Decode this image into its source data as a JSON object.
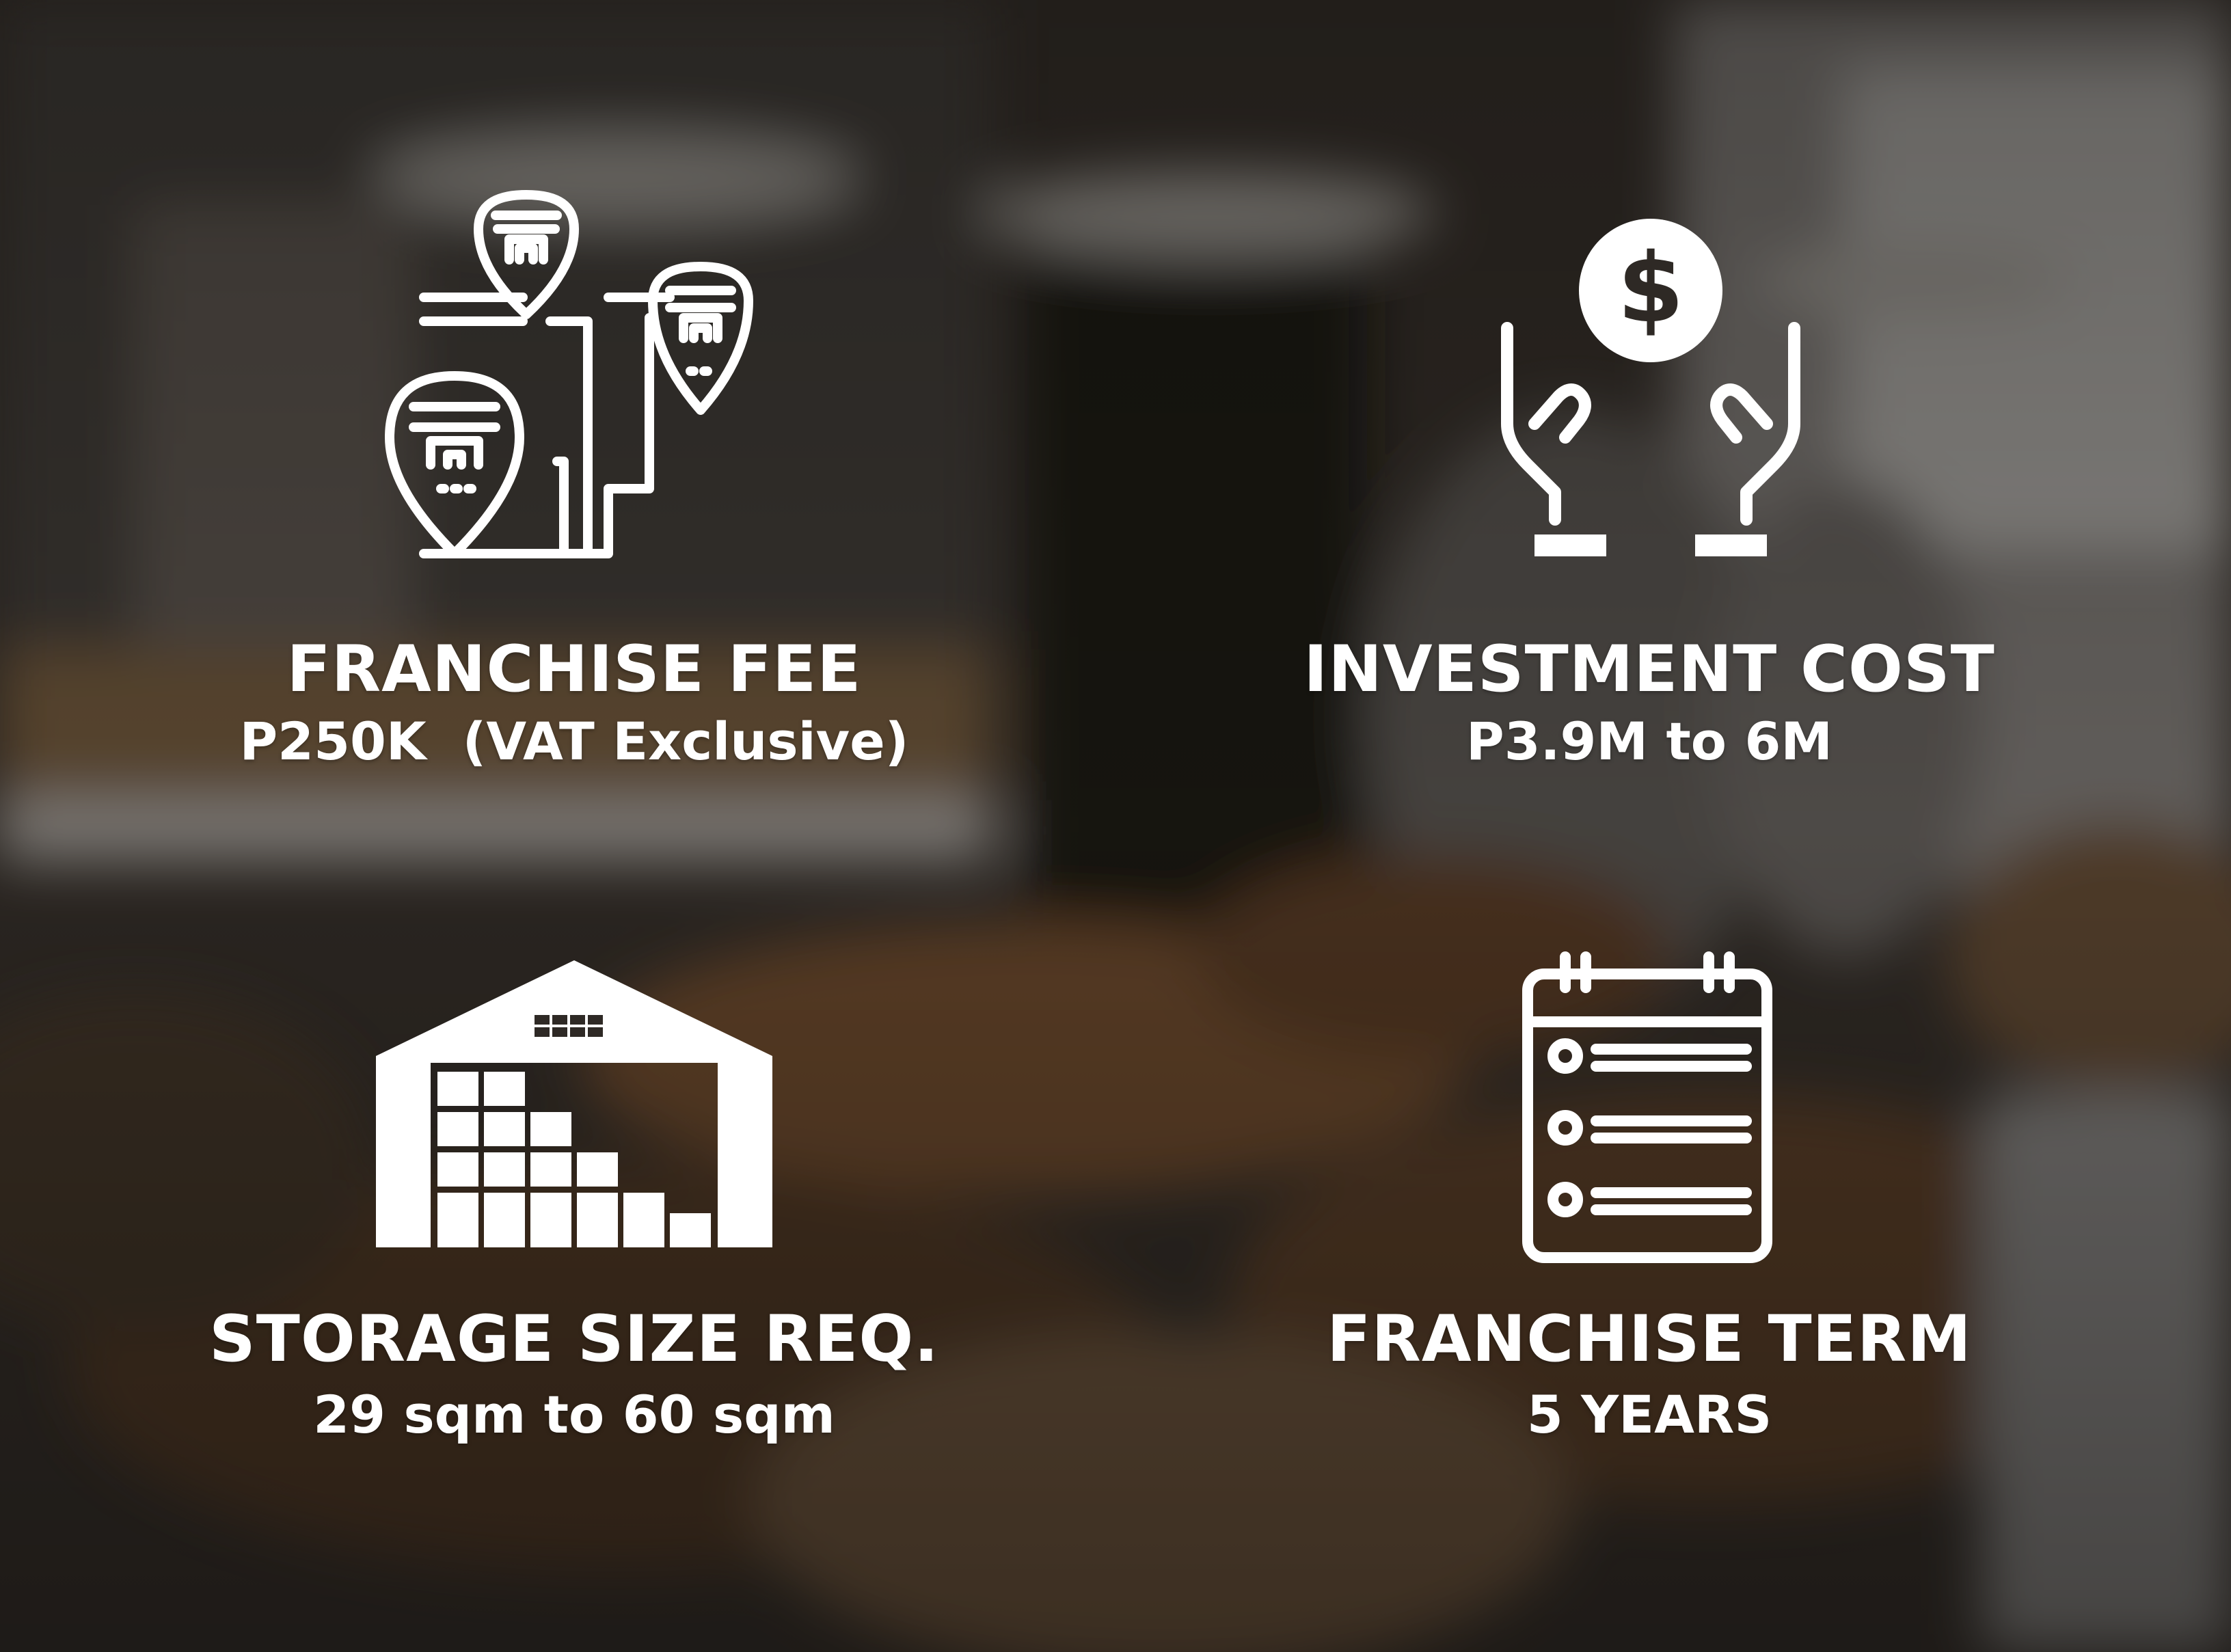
{
  "items": [
    {
      "title": "FRANCHISE FEE",
      "value": "P250K  (VAT Exclusive)",
      "icon": "store-location-pins-icon"
    },
    {
      "title": "INVESTMENT COST",
      "value": "P3.9M to 6M",
      "icon": "hands-holding-dollar-icon"
    },
    {
      "title": "STORAGE SIZE REQ.",
      "value": "29 sqm to 60 sqm",
      "icon": "warehouse-icon"
    },
    {
      "title": "FRANCHISE TERM",
      "value": "5 YEARS",
      "icon": "calendar-list-icon"
    }
  ],
  "colors": {
    "text": "#ffffff",
    "overlay": "#1e1a17"
  }
}
